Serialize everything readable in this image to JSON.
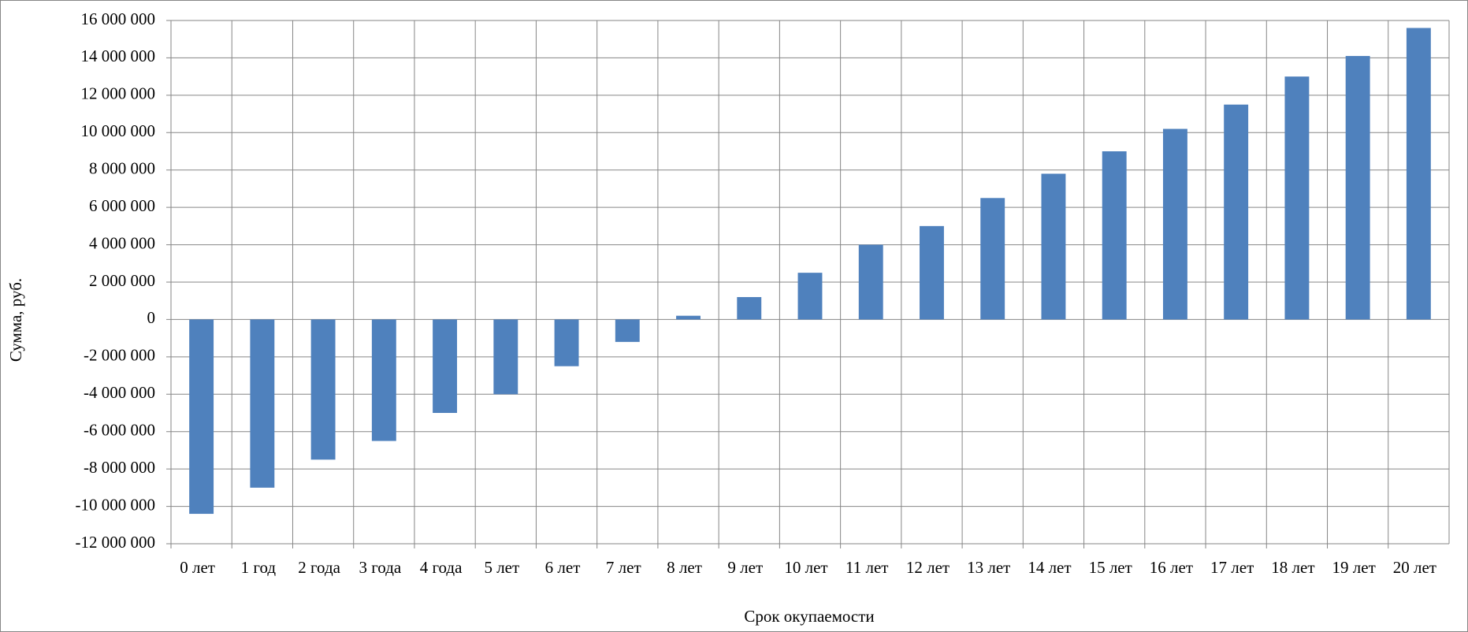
{
  "chart_data": {
    "type": "bar",
    "x_label": "Срок окупаемости",
    "y_label": "Сумма, руб.",
    "categories": [
      "0 лет",
      "1 год",
      "2 года",
      "3 года",
      "4 года",
      "5 лет",
      "6 лет",
      "7 лет",
      "8 лет",
      "9 лет",
      "10 лет",
      "11 лет",
      "12 лет",
      "13 лет",
      "14 лет",
      "15 лет",
      "16 лет",
      "17 лет",
      "18 лет",
      "19 лет",
      "20 лет"
    ],
    "values": [
      -10400000,
      -9000000,
      -7500000,
      -6500000,
      -5000000,
      -4000000,
      -2500000,
      -1200000,
      200000,
      1200000,
      2500000,
      4000000,
      5000000,
      6500000,
      7800000,
      9000000,
      10200000,
      11500000,
      13000000,
      14100000,
      15600000
    ],
    "color": "#4f81bd",
    "ylim": [
      -12000000,
      16000000
    ],
    "yticks": [
      {
        "value": -12000000,
        "label": "-12 000 000"
      },
      {
        "value": -10000000,
        "label": "-10 000 000"
      },
      {
        "value": -8000000,
        "label": "-8 000 000"
      },
      {
        "value": -6000000,
        "label": "-6 000 000"
      },
      {
        "value": -4000000,
        "label": "-4 000 000"
      },
      {
        "value": -2000000,
        "label": "-2 000 000"
      },
      0,
      {
        "value": 2000000,
        "label": "2 000 000"
      },
      {
        "value": 4000000,
        "label": "4 000 000"
      },
      {
        "value": 6000000,
        "label": "6 000 000"
      },
      {
        "value": 8000000,
        "label": "8 000 000"
      },
      {
        "value": 10000000,
        "label": "10 000 000"
      },
      {
        "value": 12000000,
        "label": "12 000 000"
      },
      {
        "value": 14000000,
        "label": "14 000 000"
      },
      {
        "value": 16000000,
        "label": "16 000 000"
      }
    ],
    "grid": true
  }
}
